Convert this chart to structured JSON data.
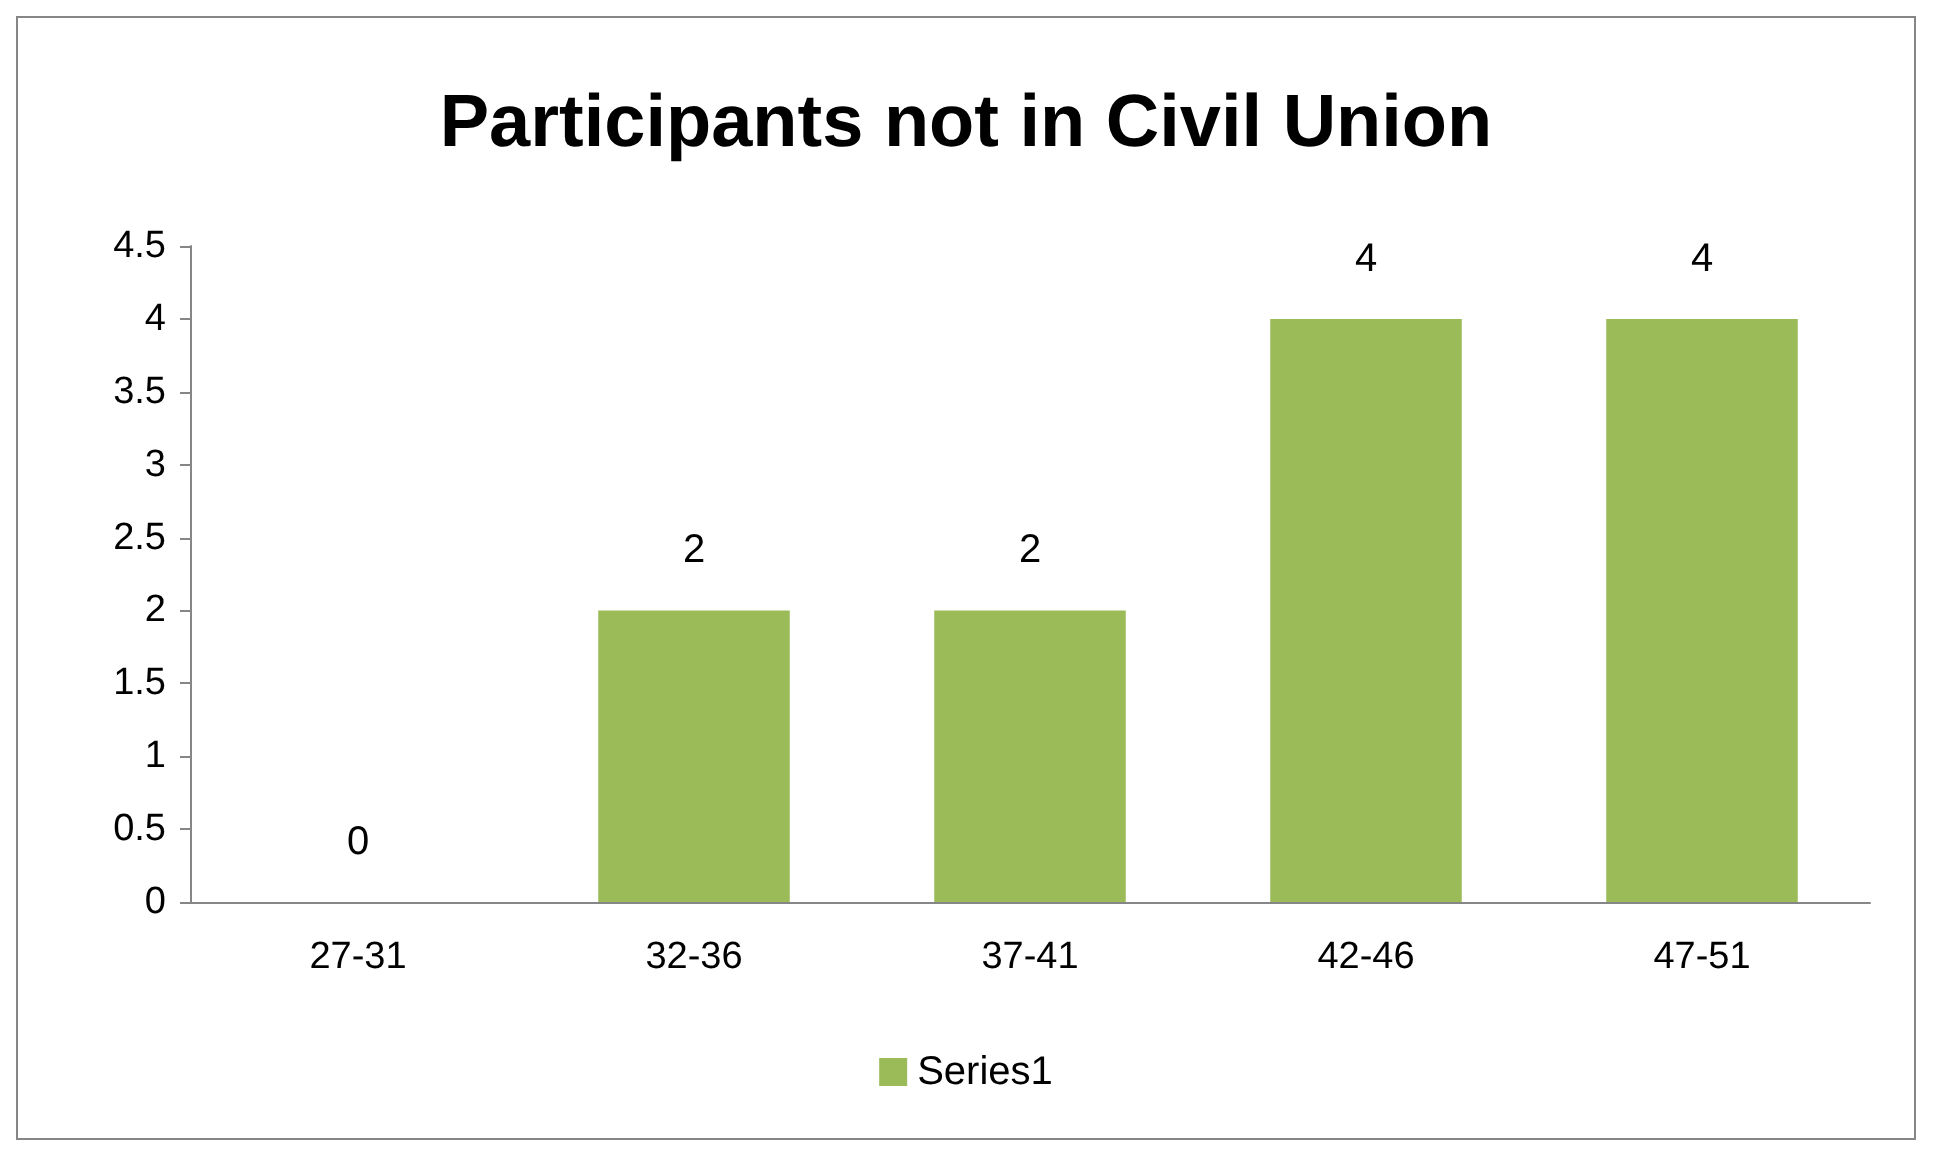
{
  "chart_data": {
    "type": "bar",
    "title": "Participants not in Civil Union",
    "categories": [
      "27-31",
      "32-36",
      "37-41",
      "42-46",
      "47-51"
    ],
    "series": [
      {
        "name": "Series1",
        "color": "#9bbb59",
        "values": [
          0,
          2,
          2,
          4,
          4
        ]
      }
    ],
    "ylim": [
      0,
      4.5
    ],
    "yticks": [
      0,
      0.5,
      1,
      1.5,
      2,
      2.5,
      3,
      3.5,
      4,
      4.5
    ],
    "grid": false,
    "legend": "bottom",
    "data_labels": true
  }
}
